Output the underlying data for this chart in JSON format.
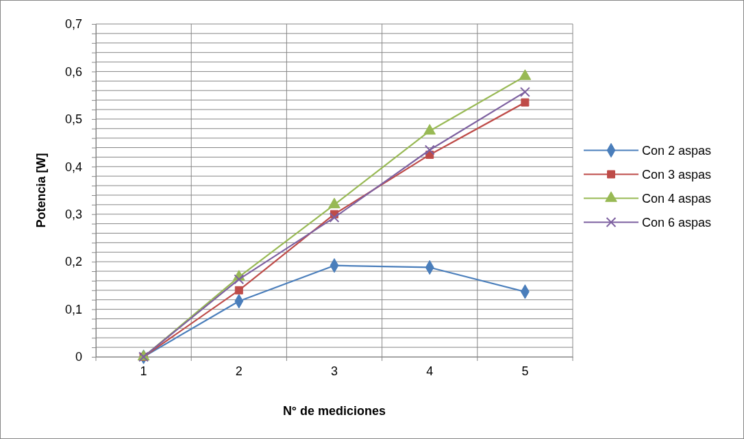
{
  "chart_data": {
    "type": "line",
    "xlabel": "N° de mediciones",
    "ylabel": "Potencia [W]",
    "categories": [
      "1",
      "2",
      "3",
      "4",
      "5"
    ],
    "series": [
      {
        "name": "Con 2 aspas",
        "color": "#4a7ebb",
        "marker": "diamond",
        "values": [
          0,
          0.117,
          0.192,
          0.188,
          0.137
        ]
      },
      {
        "name": "Con 3 aspas",
        "color": "#be4b48",
        "marker": "square",
        "values": [
          0,
          0.14,
          0.3,
          0.425,
          0.535
        ]
      },
      {
        "name": "Con 4 aspas",
        "color": "#98b954",
        "marker": "triangle",
        "values": [
          0,
          0.168,
          0.32,
          0.475,
          0.59
        ]
      },
      {
        "name": "Con 6 aspas",
        "color": "#7d60a0",
        "marker": "cross",
        "values": [
          0,
          0.163,
          0.293,
          0.435,
          0.557
        ]
      }
    ],
    "ylim": [
      0,
      0.7
    ],
    "yticks": [
      0,
      {
        "value": 0.02,
        "label": null
      },
      {
        "value": 0.04,
        "label": null
      },
      {
        "value": 0.06,
        "label": null
      },
      {
        "value": 0.08,
        "label": null
      },
      {
        "value": 0.1,
        "label": "0,1"
      },
      {
        "value": 0.12,
        "label": null
      },
      {
        "value": 0.14,
        "label": null
      },
      {
        "value": 0.16,
        "label": null
      },
      {
        "value": 0.18,
        "label": null
      },
      {
        "value": 0.2,
        "label": "0,2"
      },
      {
        "value": 0.22,
        "label": null
      },
      {
        "value": 0.24,
        "label": null
      },
      {
        "value": 0.26,
        "label": null
      },
      {
        "value": 0.28,
        "label": null
      },
      {
        "value": 0.3,
        "label": "0,3"
      },
      {
        "value": 0.32,
        "label": null
      },
      {
        "value": 0.34,
        "label": null
      },
      {
        "value": 0.36,
        "label": null
      },
      {
        "value": 0.38,
        "label": null
      },
      {
        "value": 0.4,
        "label": "0,4"
      },
      {
        "value": 0.42,
        "label": null
      },
      {
        "value": 0.44,
        "label": null
      },
      {
        "value": 0.46,
        "label": null
      },
      {
        "value": 0.48,
        "label": null
      },
      {
        "value": 0.5,
        "label": "0,5"
      },
      {
        "value": 0.52,
        "label": null
      },
      {
        "value": 0.54,
        "label": null
      },
      {
        "value": 0.56,
        "label": null
      },
      {
        "value": 0.58,
        "label": null
      },
      {
        "value": 0.6,
        "label": "0,6"
      },
      {
        "value": 0.62,
        "label": null
      },
      {
        "value": 0.64,
        "label": null
      },
      {
        "value": 0.66,
        "label": null
      },
      {
        "value": 0.68,
        "label": null
      },
      {
        "value": 0.7,
        "label": "0,7"
      }
    ],
    "grid": true,
    "legend": "right",
    "line_style": "solid"
  }
}
